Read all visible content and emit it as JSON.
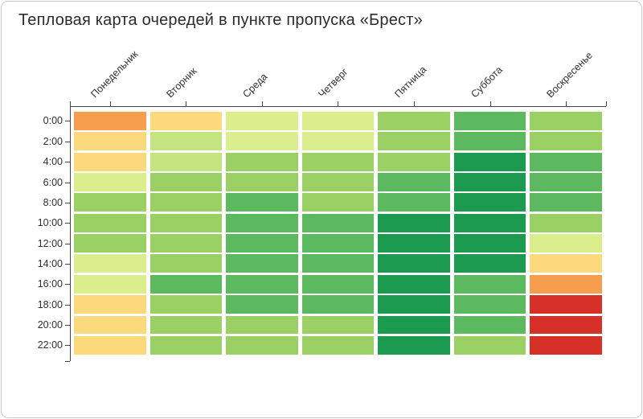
{
  "chart_data": {
    "type": "heatmap",
    "title": "Тепловая карта очередей в пункте пропуска «Брест»",
    "x_labels": [
      "Понедельник",
      "Вторник",
      "Среда",
      "Четверг",
      "Пятница",
      "Суббота",
      "Воскресенье"
    ],
    "y_labels": [
      "0:00",
      "2:00",
      "4:00",
      "6:00",
      "8:00",
      "10:00",
      "12:00",
      "14:00",
      "16:00",
      "18:00",
      "20:00",
      "22:00"
    ],
    "legend": "none",
    "grid": "off",
    "palette": {
      "1": "#d63029",
      "2": "#f79e4e",
      "3": "#fdd97d",
      "4": "#daee8e",
      "5": "#c4e47f",
      "6": "#9bd164",
      "7": "#5cb960",
      "8": "#1b9a50"
    },
    "palette_order_note": "1 = red (worst queue) ... 8 = dark green (best)",
    "levels": [
      [
        2,
        3,
        4,
        4,
        6,
        7,
        6
      ],
      [
        3,
        5,
        4,
        4,
        6,
        7,
        6
      ],
      [
        3,
        5,
        6,
        6,
        6,
        8,
        7
      ],
      [
        4,
        6,
        6,
        6,
        7,
        8,
        7
      ],
      [
        6,
        6,
        7,
        6,
        7,
        8,
        7
      ],
      [
        6,
        6,
        7,
        7,
        8,
        8,
        6
      ],
      [
        6,
        6,
        7,
        7,
        8,
        8,
        4
      ],
      [
        4,
        6,
        7,
        7,
        8,
        8,
        3
      ],
      [
        4,
        7,
        7,
        7,
        8,
        7,
        2
      ],
      [
        3,
        6,
        7,
        7,
        8,
        7,
        1
      ],
      [
        3,
        6,
        6,
        6,
        8,
        7,
        1
      ],
      [
        3,
        6,
        6,
        6,
        8,
        6,
        1
      ]
    ]
  },
  "colors": {
    "axis": "#444444",
    "title_text": "#2b2b2b",
    "axis_label_text": "#2f2f2f",
    "card_border": "#c9c9c9",
    "background": "#ffffff"
  }
}
